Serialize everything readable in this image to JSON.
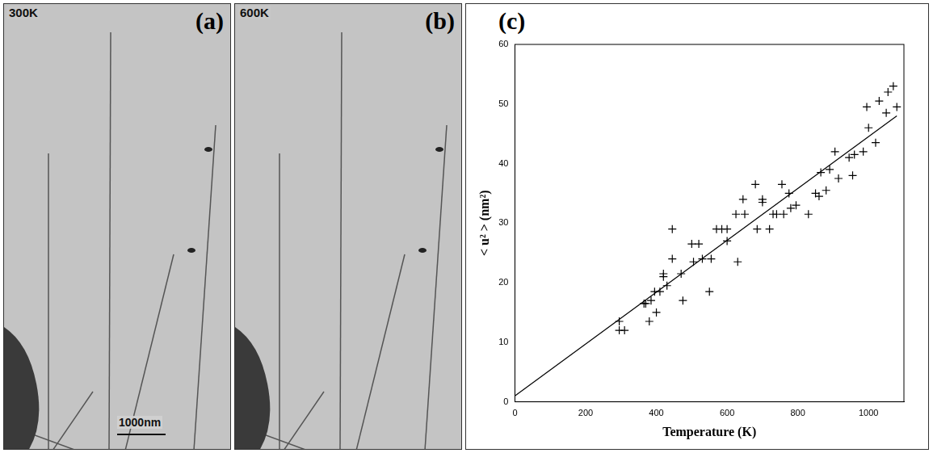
{
  "panels": [
    {
      "letter": "(a)",
      "label": "300K",
      "scale_bar": "1000nm"
    },
    {
      "letter": "(b)",
      "label": "600K"
    }
  ],
  "chart_data": {
    "type": "scatter",
    "letter": "(c)",
    "x_label": "Temperature (K)",
    "y_label": "< u² > (nm²)",
    "xlim": [
      0,
      1100
    ],
    "xticks": [
      0,
      200,
      400,
      600,
      800,
      1000
    ],
    "ylim": [
      0,
      60
    ],
    "yticks": [
      0,
      10,
      20,
      30,
      40,
      50,
      60
    ],
    "grid": false,
    "legend": false,
    "series": [
      {
        "type": "scatter",
        "marker": "cross",
        "color": "#000000",
        "x": [
          295,
          295,
          310,
          365,
          370,
          380,
          385,
          395,
          400,
          410,
          420,
          420,
          430,
          445,
          445,
          470,
          475,
          500,
          505,
          520,
          530,
          550,
          555,
          570,
          585,
          600,
          600,
          625,
          630,
          645,
          650,
          680,
          685,
          700,
          700,
          720,
          730,
          740,
          755,
          760,
          775,
          780,
          795,
          830,
          850,
          860,
          865,
          880,
          890,
          905,
          915,
          945,
          955,
          960,
          985,
          995,
          1000,
          1020,
          1030,
          1050,
          1055,
          1070,
          1080
        ],
        "values": [
          13.5,
          12,
          12,
          16.5,
          16.5,
          13.5,
          17,
          18.5,
          15,
          18.5,
          21,
          21.5,
          19.5,
          29,
          24,
          21.5,
          17,
          26.5,
          23.5,
          26.5,
          24,
          18.5,
          24,
          29,
          29,
          27,
          29,
          31.5,
          23.5,
          34,
          31.5,
          36.5,
          29,
          34,
          33.5,
          29,
          31.5,
          31.5,
          36.5,
          31.5,
          35,
          32.5,
          33,
          31.5,
          35,
          34.5,
          38.5,
          35.5,
          39,
          42,
          37.5,
          41,
          38,
          41.5,
          42,
          49.5,
          46,
          43.5,
          50.5,
          48.5,
          52,
          53,
          49.5
        ]
      },
      {
        "type": "line",
        "line_style": "solid",
        "color": "#000000",
        "x": [
          0,
          1080
        ],
        "values": [
          1,
          48
        ]
      }
    ]
  }
}
